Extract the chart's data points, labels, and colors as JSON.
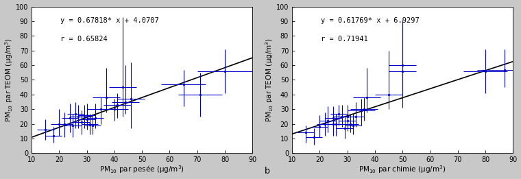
{
  "chart_a": {
    "xlabel": "PM$_{10}$ par pesée (µg/m$^3$)",
    "ylabel": "PM$_{10}$ par TEOM (µg/m$^3$)",
    "equation": "y = 0.67818* x + 4.0707",
    "r_value": "r = 0.65824",
    "slope": 0.67818,
    "intercept": 4.0707,
    "xlim": [
      10,
      90
    ],
    "ylim": [
      0,
      100
    ],
    "xticks": [
      10,
      20,
      30,
      40,
      50,
      60,
      70,
      80,
      90
    ],
    "yticks": [
      0,
      10,
      20,
      30,
      40,
      50,
      60,
      70,
      80,
      90,
      100
    ],
    "x": [
      15,
      18,
      20,
      22,
      24,
      25,
      26,
      27,
      28,
      29,
      30,
      30,
      31,
      32,
      33,
      35,
      37,
      40,
      41,
      43,
      44,
      46,
      65,
      71,
      80
    ],
    "y": [
      16,
      12,
      20,
      20,
      24,
      19,
      27,
      25,
      21,
      25,
      23,
      26,
      20,
      19,
      24,
      30,
      38,
      30,
      33,
      45,
      35,
      37,
      47,
      40,
      56
    ],
    "yerr_low": [
      7,
      5,
      8,
      9,
      10,
      8,
      10,
      8,
      8,
      8,
      6,
      10,
      7,
      6,
      7,
      10,
      10,
      8,
      9,
      20,
      8,
      20,
      15,
      15,
      15
    ],
    "yerr_high": [
      7,
      6,
      10,
      8,
      10,
      8,
      8,
      8,
      8,
      8,
      8,
      8,
      7,
      8,
      10,
      8,
      20,
      7,
      8,
      48,
      25,
      25,
      10,
      15,
      15
    ],
    "xerr": [
      3,
      3,
      3,
      3,
      3,
      3,
      3,
      3,
      3,
      3,
      3,
      3,
      3,
      3,
      3,
      5,
      5,
      5,
      5,
      5,
      5,
      5,
      8,
      8,
      10
    ]
  },
  "chart_b": {
    "xlabel": "PM$_{10}$ par chimie (µg/m$^3$)",
    "ylabel": "PM$_{10}$ par TEOM (µg/m$^3$)",
    "equation": "y = 0.61769* x + 6.9297",
    "r_value": "r = 0.71941",
    "slope": 0.61769,
    "intercept": 6.9297,
    "xlim": [
      10,
      90
    ],
    "ylim": [
      0,
      100
    ],
    "xticks": [
      10,
      20,
      30,
      40,
      50,
      60,
      70,
      80,
      90
    ],
    "yticks": [
      0,
      10,
      20,
      30,
      40,
      50,
      60,
      70,
      80,
      90,
      100
    ],
    "x": [
      15,
      18,
      20,
      22,
      23,
      25,
      25,
      26,
      27,
      28,
      29,
      30,
      30,
      31,
      32,
      33,
      35,
      36,
      37,
      45,
      50,
      50,
      80,
      87
    ],
    "y": [
      14,
      11,
      18,
      20,
      22,
      20,
      24,
      20,
      27,
      25,
      17,
      22,
      25,
      20,
      19,
      25,
      29,
      30,
      38,
      40,
      56,
      60,
      56,
      57
    ],
    "yerr_low": [
      7,
      5,
      7,
      8,
      8,
      8,
      10,
      8,
      8,
      7,
      7,
      5,
      10,
      6,
      6,
      7,
      10,
      8,
      10,
      10,
      25,
      20,
      15,
      12
    ],
    "yerr_high": [
      5,
      6,
      8,
      8,
      10,
      8,
      8,
      7,
      6,
      8,
      8,
      8,
      8,
      7,
      8,
      10,
      8,
      8,
      20,
      30,
      35,
      30,
      15,
      14
    ],
    "xerr": [
      3,
      3,
      3,
      3,
      3,
      3,
      3,
      3,
      3,
      3,
      3,
      3,
      3,
      3,
      3,
      3,
      5,
      5,
      5,
      5,
      5,
      5,
      8,
      10
    ]
  },
  "point_color": "#0000cc",
  "line_color": "#000000",
  "plot_bg": "#ffffff",
  "fig_bg": "#c8c8c8",
  "label_b": "b",
  "eq_fontsize": 7.5,
  "tick_fontsize": 7,
  "label_fontsize": 7.5
}
